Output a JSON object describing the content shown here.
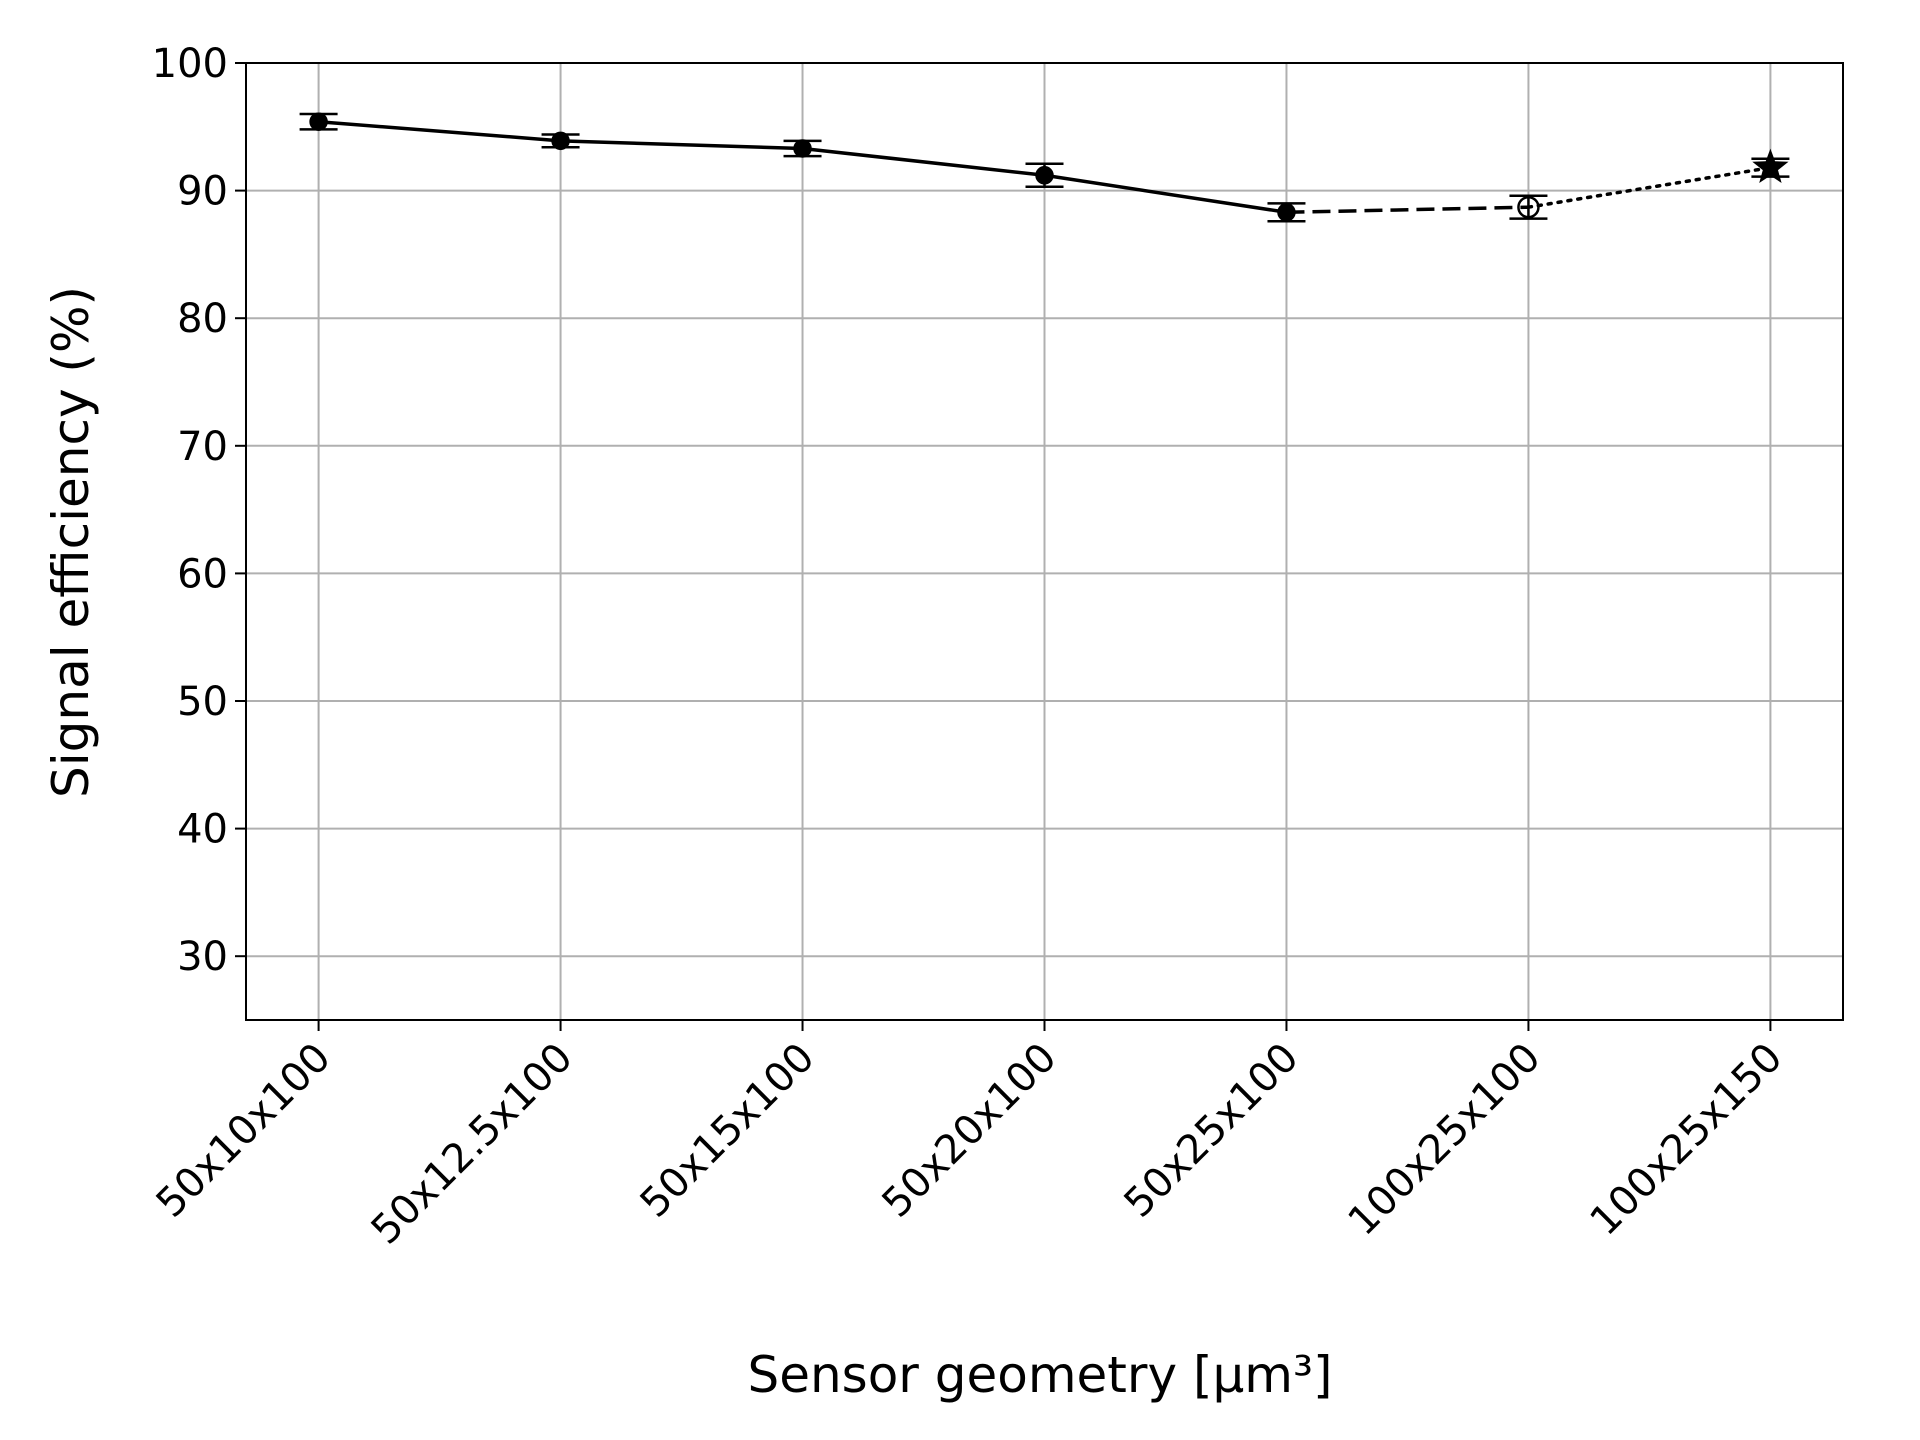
{
  "chart_data": {
    "type": "line",
    "xlabel": "Sensor geometry [μm³]",
    "ylabel": "Signal efficiency (%)",
    "categories": [
      "50x10x100",
      "50x12.5x100",
      "50x15x100",
      "50x20x100",
      "50x25x100",
      "100x25x100",
      "100x25x150"
    ],
    "values": [
      95.4,
      93.9,
      93.3,
      91.2,
      88.3,
      88.7,
      91.8
    ],
    "errors": [
      0.6,
      0.5,
      0.6,
      0.9,
      0.7,
      0.9,
      0.7
    ],
    "markers": [
      "filled-circle",
      "filled-circle",
      "filled-circle",
      "filled-circle",
      "filled-circle",
      "open-circle",
      "star"
    ],
    "segment_styles": [
      "solid",
      "solid",
      "solid",
      "solid",
      "dashed",
      "dotted"
    ],
    "color": "#000000",
    "ylim": [
      25,
      100
    ],
    "yticks": [
      30,
      40,
      50,
      60,
      70,
      80,
      90,
      100
    ],
    "grid": true
  }
}
